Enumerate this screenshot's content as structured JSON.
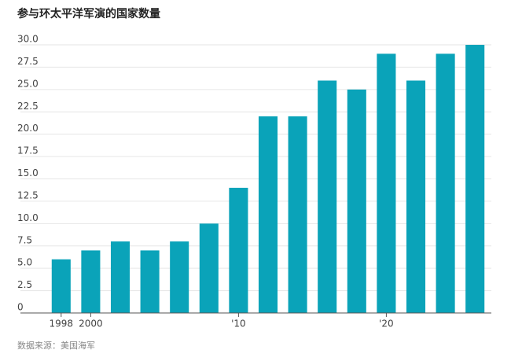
{
  "chart_data": {
    "type": "bar",
    "title": "参与环太平洋军演的国家数量",
    "categories": [
      "1998",
      "2000",
      null,
      null,
      null,
      null,
      "'10",
      null,
      null,
      null,
      null,
      "'20",
      null,
      null,
      null
    ],
    "values": [
      6,
      7,
      8,
      7,
      8,
      10,
      14,
      22,
      22,
      26,
      25,
      29,
      26,
      29,
      30
    ],
    "color": "#0aa3b9",
    "ylim": [
      0,
      30
    ],
    "yticks": [
      0,
      2.5,
      {
        "value": 5,
        "label": "5.0"
      },
      7.5,
      {
        "value": 10,
        "label": "10.0"
      },
      12.5,
      {
        "value": 15,
        "label": "15.0"
      },
      17.5,
      {
        "value": 20,
        "label": "20.0"
      },
      22.5,
      {
        "value": 25,
        "label": "25.0"
      },
      27.5,
      {
        "value": 30,
        "label": "30.0"
      }
    ],
    "grid": true,
    "source": "数据来源：美国海军"
  }
}
